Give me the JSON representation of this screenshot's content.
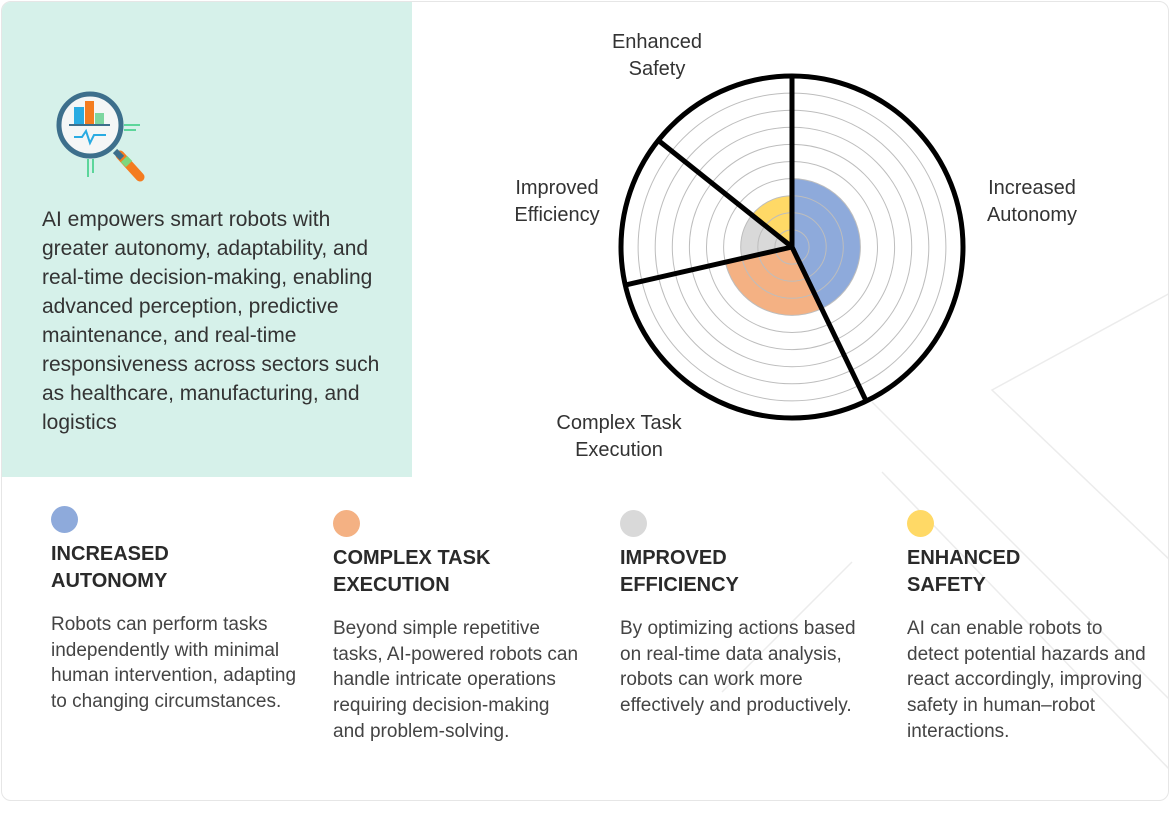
{
  "intro": "AI empowers smart robots with greater autonomy, adaptability, and real-time decision-making, enabling advanced perception, predictive maintenance, and real-time responsiveness across sectors such as healthcare, manufacturing, and logistics",
  "icon": "magnifier-chart-icon",
  "colors": {
    "panel": "#d6f1ea",
    "autonomy": "#8eaadb",
    "complex": "#f4b183",
    "efficiency": "#d9d9d9",
    "safety": "#ffd966"
  },
  "chart_data": {
    "type": "polar-area",
    "rings": 10,
    "categories": [
      "Increased Autonomy",
      "Complex Task Execution",
      "Improved Efficiency",
      "Enhanced Safety"
    ],
    "sector_weights": [
      3,
      2,
      1,
      1
    ],
    "values": [
      4,
      4,
      3,
      3
    ],
    "colors": [
      "#8eaadb",
      "#f4b183",
      "#d9d9d9",
      "#ffd966"
    ],
    "labels": [
      {
        "line1": "Increased",
        "line2": "Autonomy"
      },
      {
        "line1": "Complex Task",
        "line2": "Execution"
      },
      {
        "line1": "Improved",
        "line2": "Efficiency"
      },
      {
        "line1": "Enhanced",
        "line2": "Safety"
      }
    ]
  },
  "legend": [
    {
      "title_1": "INCREASED",
      "title_2": "AUTONOMY",
      "color": "#8eaadb",
      "text": "Robots can perform tasks independently with minimal human intervention, adapting to changing circumstances."
    },
    {
      "title_1": "COMPLEX TASK",
      "title_2": "EXECUTION",
      "color": "#f4b183",
      "text": "Beyond simple repetitive tasks, AI-powered robots can handle intricate operations requiring decision-making and problem-solving."
    },
    {
      "title_1": "IMPROVED",
      "title_2": "EFFICIENCY",
      "color": "#d9d9d9",
      "text": "By optimizing actions based on real-time data analysis, robots can work more effectively and productively."
    },
    {
      "title_1": "ENHANCED",
      "title_2": "SAFETY",
      "color": "#ffd966",
      "text": "AI can enable robots to detect potential hazards and react accordingly, improving safety in human–robot interactions."
    }
  ]
}
